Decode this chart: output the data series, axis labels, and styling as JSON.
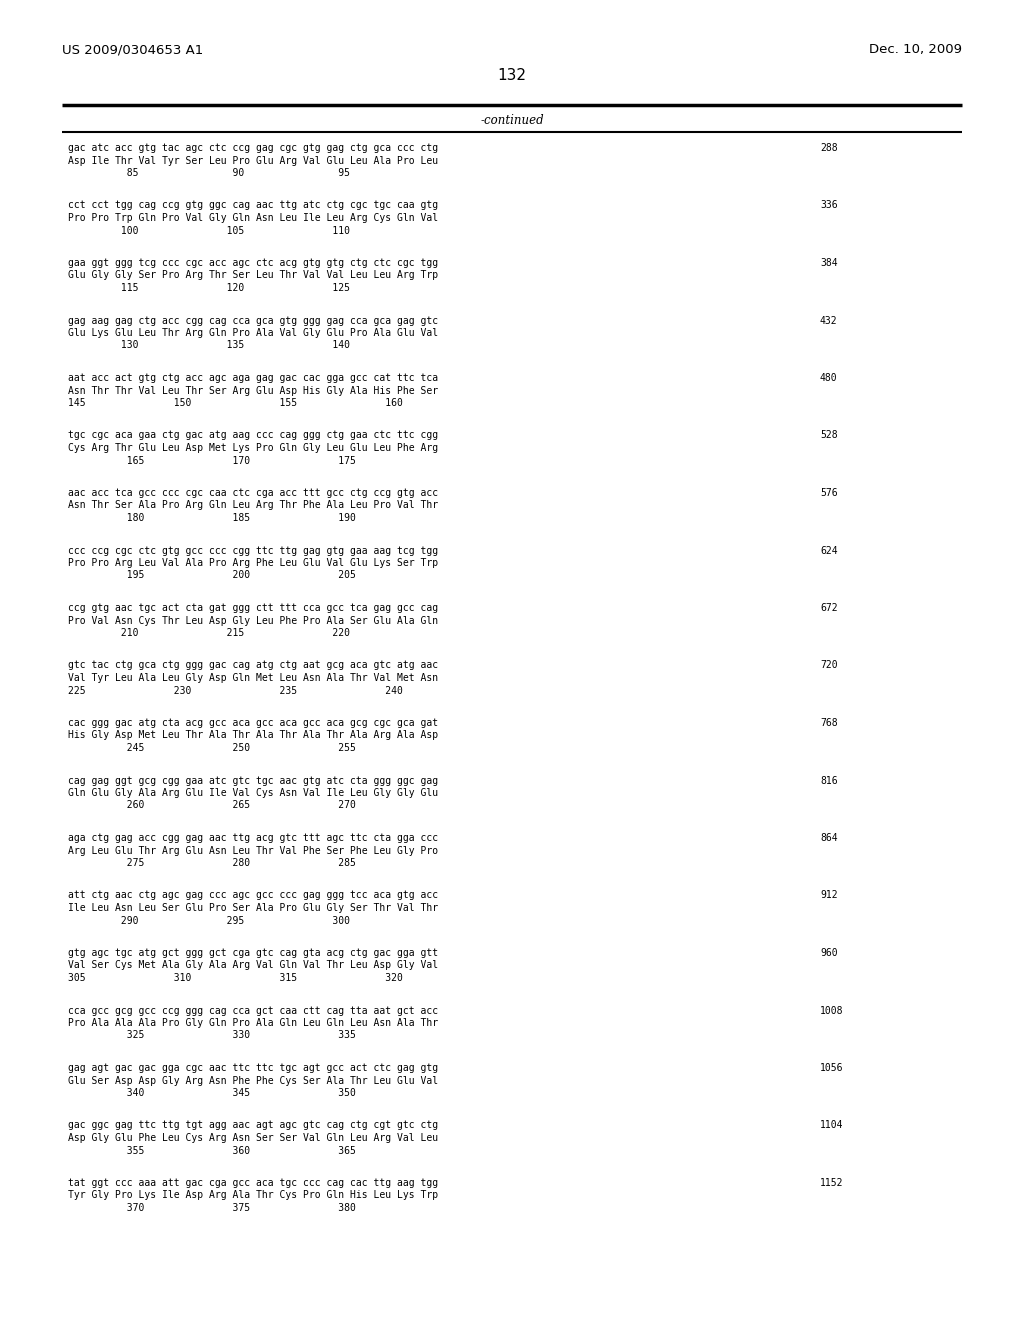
{
  "header_left": "US 2009/0304653 A1",
  "header_right": "Dec. 10, 2009",
  "page_number": "132",
  "continued_label": "-continued",
  "background_color": "#ffffff",
  "text_color": "#000000",
  "blocks": [
    {
      "dna": "gac atc acc gtg tac agc ctc ccg gag cgc gtg gag ctg gca ccc ctg",
      "aa": "Asp Ile Thr Val Tyr Ser Leu Pro Glu Arg Val Glu Leu Ala Pro Leu",
      "nums": "          85                90                95",
      "num_right": "288"
    },
    {
      "dna": "cct cct tgg cag ccg gtg ggc cag aac ttg atc ctg cgc tgc caa gtg",
      "aa": "Pro Pro Trp Gln Pro Val Gly Gln Asn Leu Ile Leu Arg Cys Gln Val",
      "nums": "         100               105               110",
      "num_right": "336"
    },
    {
      "dna": "gaa ggt ggg tcg ccc cgc acc agc ctc acg gtg gtg ctg ctc cgc tgg",
      "aa": "Glu Gly Gly Ser Pro Arg Thr Ser Leu Thr Val Val Leu Leu Arg Trp",
      "nums": "         115               120               125",
      "num_right": "384"
    },
    {
      "dna": "gag aag gag ctg acc cgg cag cca gca gtg ggg gag cca gca gag gtc",
      "aa": "Glu Lys Glu Leu Thr Arg Gln Pro Ala Val Gly Glu Pro Ala Glu Val",
      "nums": "         130               135               140",
      "num_right": "432"
    },
    {
      "dna": "aat acc act gtg ctg acc agc aga gag gac cac gga gcc cat ttc tca",
      "aa": "Asn Thr Thr Val Leu Thr Ser Arg Glu Asp His Gly Ala His Phe Ser",
      "nums": "145               150               155               160",
      "num_right": "480"
    },
    {
      "dna": "tgc cgc aca gaa ctg gac atg aag ccc cag ggg ctg gaa ctc ttc cgg",
      "aa": "Cys Arg Thr Glu Leu Asp Met Lys Pro Gln Gly Leu Glu Leu Phe Arg",
      "nums": "          165               170               175",
      "num_right": "528"
    },
    {
      "dna": "aac acc tca gcc ccc cgc caa ctc cga acc ttt gcc ctg ccg gtg acc",
      "aa": "Asn Thr Ser Ala Pro Arg Gln Leu Arg Thr Phe Ala Leu Pro Val Thr",
      "nums": "          180               185               190",
      "num_right": "576"
    },
    {
      "dna": "ccc ccg cgc ctc gtg gcc ccc cgg ttc ttg gag gtg gaa aag tcg tgg",
      "aa": "Pro Pro Arg Leu Val Ala Pro Arg Phe Leu Glu Val Glu Lys Ser Trp",
      "nums": "          195               200               205",
      "num_right": "624"
    },
    {
      "dna": "ccg gtg aac tgc act cta gat ggg ctt ttt cca gcc tca gag gcc cag",
      "aa": "Pro Val Asn Cys Thr Leu Asp Gly Leu Phe Pro Ala Ser Glu Ala Gln",
      "nums": "         210               215               220",
      "num_right": "672"
    },
    {
      "dna": "gtc tac ctg gca ctg ggg gac cag atg ctg aat gcg aca gtc atg aac",
      "aa": "Val Tyr Leu Ala Leu Gly Asp Gln Met Leu Asn Ala Thr Val Met Asn",
      "nums": "225               230               235               240",
      "num_right": "720"
    },
    {
      "dna": "cac ggg gac atg cta acg gcc aca gcc aca gcc aca gcg cgc gca gat",
      "aa": "His Gly Asp Met Leu Thr Ala Thr Ala Thr Ala Thr Ala Arg Ala Asp",
      "nums": "          245               250               255",
      "num_right": "768"
    },
    {
      "dna": "cag gag ggt gcg cgg gaa atc gtc tgc aac gtg atc cta ggg ggc gag",
      "aa": "Gln Glu Gly Ala Arg Glu Ile Val Cys Asn Val Ile Leu Gly Gly Glu",
      "nums": "          260               265               270",
      "num_right": "816"
    },
    {
      "dna": "aga ctg gag acc cgg gag aac ttg acg gtc ttt agc ttc cta gga ccc",
      "aa": "Arg Leu Glu Thr Arg Glu Asn Leu Thr Val Phe Ser Phe Leu Gly Pro",
      "nums": "          275               280               285",
      "num_right": "864"
    },
    {
      "dna": "att ctg aac ctg agc gag ccc agc gcc ccc gag ggg tcc aca gtg acc",
      "aa": "Ile Leu Asn Leu Ser Glu Pro Ser Ala Pro Glu Gly Ser Thr Val Thr",
      "nums": "         290               295               300",
      "num_right": "912"
    },
    {
      "dna": "gtg agc tgc atg gct ggg gct cga gtc cag gta acg ctg gac gga gtt",
      "aa": "Val Ser Cys Met Ala Gly Ala Arg Val Gln Val Thr Leu Asp Gly Val",
      "nums": "305               310               315               320",
      "num_right": "960"
    },
    {
      "dna": "cca gcc gcg gcc ccg ggg cag cca gct caa ctt cag tta aat gct acc",
      "aa": "Pro Ala Ala Ala Pro Gly Gln Pro Ala Gln Leu Gln Leu Asn Ala Thr",
      "nums": "          325               330               335",
      "num_right": "1008"
    },
    {
      "dna": "gag agt gac gac gga cgc aac ttc ttc tgc agt gcc act ctc gag gtg",
      "aa": "Glu Ser Asp Asp Gly Arg Asn Phe Phe Cys Ser Ala Thr Leu Glu Val",
      "nums": "          340               345               350",
      "num_right": "1056"
    },
    {
      "dna": "gac ggc gag ttc ttg tgt agg aac agt agc gtc cag ctg cgt gtc ctg",
      "aa": "Asp Gly Glu Phe Leu Cys Arg Asn Ser Ser Val Gln Leu Arg Val Leu",
      "nums": "          355               360               365",
      "num_right": "1104"
    },
    {
      "dna": "tat ggt ccc aaa att gac cga gcc aca tgc ccc cag cac ttg aag tgg",
      "aa": "Tyr Gly Pro Lys Ile Asp Arg Ala Thr Cys Pro Gln His Leu Lys Trp",
      "nums": "          370               375               380",
      "num_right": "1152"
    }
  ]
}
